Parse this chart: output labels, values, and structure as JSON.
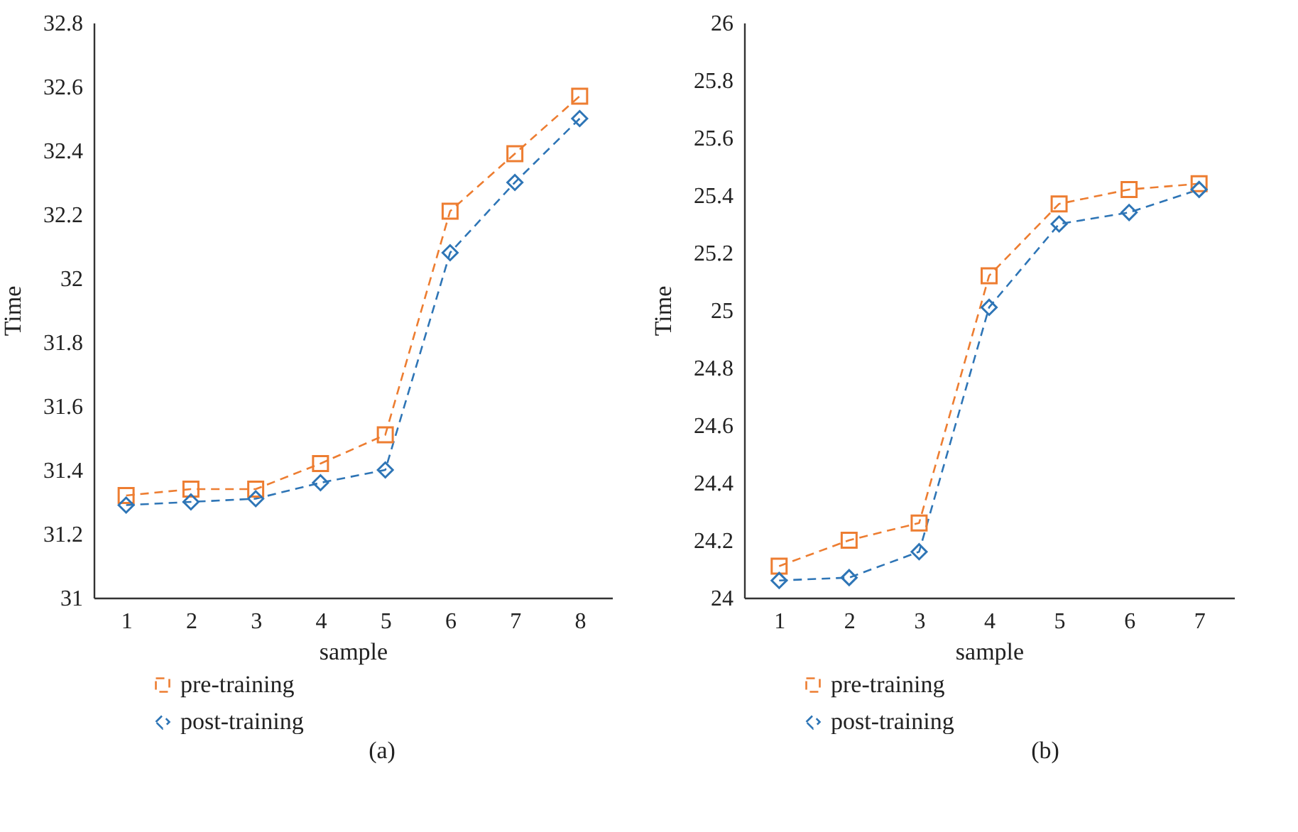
{
  "chart_data": [
    {
      "type": "line",
      "xlabel": "sample",
      "ylabel": "Time",
      "categories": [
        "1",
        "2",
        "3",
        "4",
        "5",
        "6",
        "7",
        "8"
      ],
      "ylim": [
        31,
        32.8
      ],
      "yticks": [
        31,
        31.2,
        31.4,
        31.6,
        31.8,
        32,
        32.2,
        32.4,
        32.6,
        32.8
      ],
      "grid": false,
      "legend": "bottom",
      "annotations": [
        "(a)"
      ],
      "series": [
        {
          "name": "pre-training",
          "color": "#ed7d31",
          "marker": "square",
          "line_style": "dashed",
          "values": [
            31.32,
            31.34,
            31.34,
            31.42,
            31.51,
            32.21,
            32.39,
            32.57
          ]
        },
        {
          "name": "post-training",
          "color": "#2e75b6",
          "marker": "diamond",
          "line_style": "dashed",
          "values": [
            31.29,
            31.3,
            31.31,
            31.36,
            31.4,
            32.08,
            32.3,
            32.5
          ]
        }
      ]
    },
    {
      "type": "line",
      "xlabel": "sample",
      "ylabel": "Time",
      "categories": [
        "1",
        "2",
        "3",
        "4",
        "5",
        "6",
        "7"
      ],
      "ylim": [
        24,
        26
      ],
      "yticks": [
        24,
        24.2,
        24.4,
        24.6,
        24.8,
        25,
        25.2,
        25.4,
        25.6,
        25.8,
        26
      ],
      "grid": false,
      "legend": "bottom",
      "annotations": [
        "(b)"
      ],
      "series": [
        {
          "name": "pre-training",
          "color": "#ed7d31",
          "marker": "square",
          "line_style": "dashed",
          "values": [
            24.11,
            24.2,
            24.26,
            25.12,
            25.37,
            25.42,
            25.44
          ]
        },
        {
          "name": "post-training",
          "color": "#2e75b6",
          "marker": "diamond",
          "line_style": "dashed",
          "values": [
            24.06,
            24.07,
            24.16,
            25.01,
            25.3,
            25.34,
            25.42
          ]
        }
      ]
    }
  ]
}
